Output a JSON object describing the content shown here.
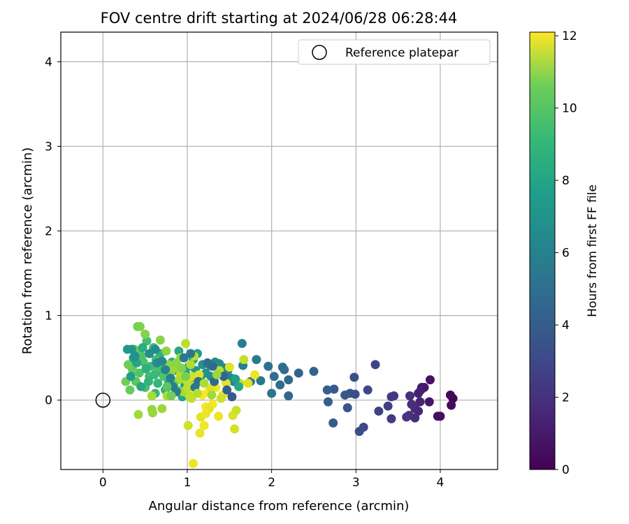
{
  "chart_data": {
    "type": "scatter",
    "title": "FOV centre drift starting at 2024/06/28 06:28:44",
    "xlabel": "Angular distance from reference (arcmin)",
    "ylabel": "Rotation from reference (arcmin)",
    "xlim": [
      -0.5,
      4.68
    ],
    "ylim": [
      -0.82,
      4.35
    ],
    "xticks": [
      0,
      1,
      2,
      3,
      4
    ],
    "xtick_labels": [
      "0",
      "1",
      "2",
      "3",
      "4"
    ],
    "yticks": [
      0,
      1,
      2,
      3,
      4
    ],
    "ytick_labels": [
      "0",
      "1",
      "2",
      "3",
      "4"
    ],
    "grid": true,
    "legend": {
      "placement": "top-right",
      "entries": [
        "Reference platepar"
      ]
    },
    "reference_point": {
      "x": 0,
      "y": 0
    },
    "colorbar": {
      "label": "Hours from first FF file",
      "colormap": "viridis",
      "range": [
        0,
        12.1
      ],
      "ticks": [
        0,
        2,
        4,
        6,
        8,
        10,
        12
      ],
      "tick_labels": [
        "0",
        "2",
        "4",
        "6",
        "8",
        "10",
        "12"
      ]
    },
    "series": [
      {
        "points": [
          [
            4.15,
            0.02,
            0.1
          ],
          [
            4.12,
            0.06,
            0.2
          ],
          [
            4.13,
            -0.06,
            0.3
          ],
          [
            4.0,
            -0.19,
            0.4
          ],
          [
            3.97,
            -0.19,
            0.5
          ],
          [
            3.88,
            0.24,
            0.6
          ],
          [
            3.87,
            -0.02,
            0.7
          ],
          [
            3.81,
            0.15,
            0.8
          ],
          [
            3.78,
            0.15,
            0.9
          ],
          [
            3.77,
            0.12,
            1.0
          ],
          [
            3.74,
            0.08,
            1.1
          ],
          [
            3.76,
            -0.02,
            1.2
          ],
          [
            3.74,
            -0.13,
            1.3
          ],
          [
            3.7,
            -0.1,
            1.4
          ],
          [
            3.7,
            -0.21,
            1.5
          ],
          [
            3.66,
            -0.05,
            1.6
          ],
          [
            3.64,
            0.05,
            1.7
          ],
          [
            3.63,
            -0.18,
            1.8
          ],
          [
            3.6,
            -0.2,
            1.9
          ],
          [
            3.45,
            0.05,
            2.0
          ],
          [
            3.42,
            0.04,
            2.1
          ],
          [
            3.42,
            -0.22,
            2.2
          ],
          [
            3.38,
            -0.07,
            2.3
          ],
          [
            3.27,
            -0.13,
            2.4
          ],
          [
            3.23,
            0.42,
            2.5
          ],
          [
            3.14,
            0.12,
            2.6
          ],
          [
            3.09,
            -0.32,
            2.7
          ],
          [
            3.04,
            -0.37,
            2.8
          ],
          [
            2.99,
            0.07,
            2.9
          ],
          [
            2.98,
            0.27,
            3.0
          ],
          [
            2.93,
            0.08,
            3.1
          ],
          [
            2.9,
            -0.09,
            3.2
          ],
          [
            2.87,
            0.06,
            3.3
          ],
          [
            2.74,
            0.13,
            3.4
          ],
          [
            2.73,
            -0.27,
            3.5
          ],
          [
            2.67,
            -0.02,
            3.6
          ],
          [
            2.66,
            0.12,
            3.7
          ],
          [
            2.5,
            0.34,
            3.8
          ],
          [
            2.32,
            0.32,
            3.9
          ],
          [
            2.2,
            0.05,
            4.0
          ],
          [
            2.2,
            0.24,
            4.1
          ],
          [
            2.15,
            0.36,
            4.2
          ],
          [
            2.13,
            0.39,
            4.3
          ],
          [
            2.1,
            0.18,
            4.4
          ],
          [
            2.03,
            0.28,
            4.5
          ],
          [
            1.96,
            0.4,
            4.6
          ],
          [
            2.0,
            0.08,
            4.7
          ],
          [
            1.87,
            0.23,
            4.8
          ],
          [
            1.82,
            0.48,
            4.9
          ],
          [
            1.75,
            0.22,
            5.0
          ],
          [
            1.66,
            0.41,
            5.1
          ],
          [
            1.65,
            0.67,
            5.2
          ],
          [
            1.55,
            0.22,
            5.3
          ],
          [
            1.52,
            0.26,
            5.4
          ],
          [
            1.48,
            0.35,
            5.5
          ],
          [
            1.44,
            0.38,
            5.6
          ],
          [
            1.38,
            0.43,
            5.7
          ],
          [
            1.33,
            0.45,
            5.8
          ],
          [
            1.28,
            0.28,
            5.9
          ],
          [
            1.27,
            0.41,
            6.0
          ],
          [
            1.22,
            0.32,
            6.1
          ],
          [
            1.18,
            0.42,
            6.2
          ],
          [
            1.16,
            0.28,
            6.3
          ],
          [
            1.1,
            0.35,
            6.4
          ],
          [
            1.06,
            0.24,
            6.5
          ],
          [
            1.12,
            0.55,
            6.6
          ],
          [
            1.07,
            0.48,
            6.7
          ],
          [
            1.02,
            0.4,
            6.8
          ],
          [
            0.99,
            0.3,
            6.9
          ],
          [
            0.97,
            0.18,
            7.0
          ],
          [
            0.94,
            0.04,
            7.1
          ],
          [
            0.9,
            0.58,
            7.2
          ],
          [
            0.86,
            0.35,
            7.3
          ],
          [
            0.82,
            0.45,
            7.4
          ],
          [
            0.78,
            0.22,
            7.5
          ],
          [
            0.74,
            0.12,
            7.6
          ],
          [
            0.7,
            0.32,
            7.7
          ],
          [
            0.68,
            0.55,
            7.8
          ],
          [
            0.65,
            0.2,
            7.9
          ],
          [
            0.62,
            0.08,
            8.0
          ],
          [
            0.6,
            0.62,
            8.1
          ],
          [
            0.57,
            0.4,
            8.2
          ],
          [
            0.55,
            0.28,
            8.3
          ],
          [
            0.52,
            0.7,
            8.4
          ],
          [
            0.5,
            0.15,
            8.5
          ],
          [
            0.48,
            0.45,
            8.6
          ],
          [
            0.46,
            0.52,
            8.7
          ],
          [
            0.43,
            0.32,
            8.8
          ],
          [
            0.41,
            0.58,
            8.9
          ],
          [
            0.39,
            0.22,
            9.0
          ],
          [
            0.37,
            0.6,
            9.1
          ],
          [
            0.35,
            0.36,
            9.2
          ],
          [
            0.32,
            0.12,
            9.3
          ],
          [
            0.3,
            0.42,
            9.4
          ],
          [
            0.27,
            0.22,
            9.5
          ],
          [
            0.41,
            0.87,
            9.6
          ],
          [
            0.44,
            0.87,
            9.7
          ],
          [
            0.5,
            0.78,
            9.8
          ],
          [
            0.68,
            0.71,
            9.9
          ],
          [
            0.75,
            0.58,
            10.0
          ],
          [
            0.58,
            -0.11,
            10.1
          ],
          [
            0.59,
            -0.15,
            10.2
          ],
          [
            0.7,
            -0.1,
            10.3
          ],
          [
            0.42,
            -0.17,
            10.4
          ],
          [
            0.58,
            0.05,
            10.5
          ],
          [
            0.76,
            0.05,
            10.6
          ],
          [
            0.83,
            0.2,
            10.7
          ],
          [
            0.92,
            0.3,
            10.8
          ],
          [
            0.98,
            0.67,
            10.9
          ],
          [
            1.0,
            0.22,
            11.0
          ],
          [
            1.02,
            0.06,
            11.1
          ],
          [
            1.01,
            -0.3,
            11.2
          ],
          [
            1.06,
            0.28,
            11.3
          ],
          [
            1.1,
            0.18,
            11.4
          ],
          [
            1.14,
            0.3,
            11.5
          ],
          [
            1.16,
            -0.2,
            11.6
          ],
          [
            1.15,
            -0.39,
            11.7
          ],
          [
            1.07,
            -0.75,
            11.8
          ],
          [
            1.2,
            -0.3,
            11.9
          ],
          [
            1.22,
            -0.08,
            12.0
          ],
          [
            1.25,
            0.1,
            12.1
          ],
          [
            1.3,
            -0.05,
            12.0
          ],
          [
            1.34,
            0.15,
            11.9
          ],
          [
            1.37,
            -0.19,
            11.8
          ],
          [
            1.42,
            0.06,
            11.7
          ],
          [
            1.46,
            0.2,
            11.6
          ],
          [
            1.5,
            0.39,
            11.5
          ],
          [
            1.54,
            -0.18,
            11.4
          ],
          [
            1.56,
            -0.34,
            11.3
          ],
          [
            1.58,
            -0.12,
            11.2
          ],
          [
            1.62,
            0.2,
            11.1
          ],
          [
            1.67,
            0.48,
            11.0
          ],
          [
            1.72,
            0.2,
            11.5
          ],
          [
            1.8,
            0.3,
            11.8
          ],
          [
            1.38,
            0.35,
            10.8
          ],
          [
            1.4,
            0.02,
            11.2
          ],
          [
            1.28,
            0.14,
            11.5
          ],
          [
            1.26,
            -0.1,
            11.6
          ],
          [
            1.22,
            -0.16,
            11.8
          ],
          [
            1.18,
            0.06,
            12.0
          ],
          [
            0.95,
            0.1,
            10.5
          ],
          [
            0.9,
            0.24,
            10.6
          ],
          [
            0.85,
            0.38,
            10.4
          ],
          [
            0.8,
            0.32,
            10.2
          ],
          [
            0.78,
            0.42,
            10.0
          ],
          [
            1.0,
            0.14,
            10.9
          ],
          [
            1.04,
            0.42,
            10.7
          ],
          [
            1.08,
            0.52,
            10.8
          ],
          [
            0.92,
            0.5,
            10.3
          ],
          [
            0.88,
            0.12,
            9.4
          ],
          [
            0.84,
            0.18,
            9.2
          ],
          [
            0.72,
            0.28,
            8.8
          ],
          [
            0.66,
            0.38,
            8.6
          ],
          [
            0.63,
            0.48,
            8.4
          ],
          [
            0.61,
            0.3,
            8.2
          ],
          [
            0.54,
            0.22,
            7.9
          ],
          [
            0.51,
            0.37,
            7.7
          ],
          [
            0.47,
            0.62,
            7.5
          ],
          [
            0.45,
            0.16,
            7.3
          ],
          [
            0.4,
            0.44,
            7.1
          ],
          [
            0.36,
            0.5,
            6.9
          ],
          [
            0.33,
            0.28,
            6.7
          ],
          [
            0.29,
            0.6,
            6.5
          ],
          [
            0.34,
            0.6,
            6.3
          ],
          [
            0.38,
            0.52,
            6.1
          ],
          [
            0.55,
            0.55,
            6.0
          ],
          [
            0.62,
            0.6,
            5.9
          ],
          [
            0.64,
            0.44,
            5.8
          ],
          [
            0.7,
            0.46,
            5.6
          ],
          [
            0.74,
            0.36,
            5.5
          ],
          [
            0.8,
            0.26,
            5.4
          ],
          [
            0.83,
            0.16,
            5.3
          ],
          [
            0.87,
            0.1,
            5.1
          ],
          [
            0.96,
            0.5,
            4.9
          ],
          [
            1.04,
            0.55,
            4.8
          ],
          [
            1.09,
            0.15,
            4.7
          ],
          [
            1.13,
            0.22,
            4.5
          ],
          [
            1.24,
            0.44,
            4.4
          ],
          [
            1.3,
            0.4,
            4.2
          ],
          [
            1.32,
            0.22,
            4.1
          ],
          [
            1.43,
            0.28,
            3.9
          ],
          [
            1.47,
            0.12,
            3.7
          ],
          [
            1.53,
            0.04,
            3.5
          ],
          [
            1.57,
            0.25,
            6.8
          ],
          [
            1.61,
            0.16,
            7.2
          ],
          [
            1.35,
            0.3,
            10.2
          ],
          [
            1.29,
            0.06,
            10.4
          ],
          [
            1.2,
            0.2,
            10.6
          ],
          [
            1.12,
            0.08,
            10.8
          ],
          [
            1.05,
            0.02,
            11.0
          ],
          [
            0.98,
            0.28,
            9.6
          ],
          [
            0.93,
            0.38,
            9.8
          ],
          [
            0.87,
            0.44,
            10.0
          ],
          [
            0.81,
            0.05,
            9.5
          ],
          [
            0.76,
            0.16,
            9.0
          ]
        ]
      }
    ]
  }
}
